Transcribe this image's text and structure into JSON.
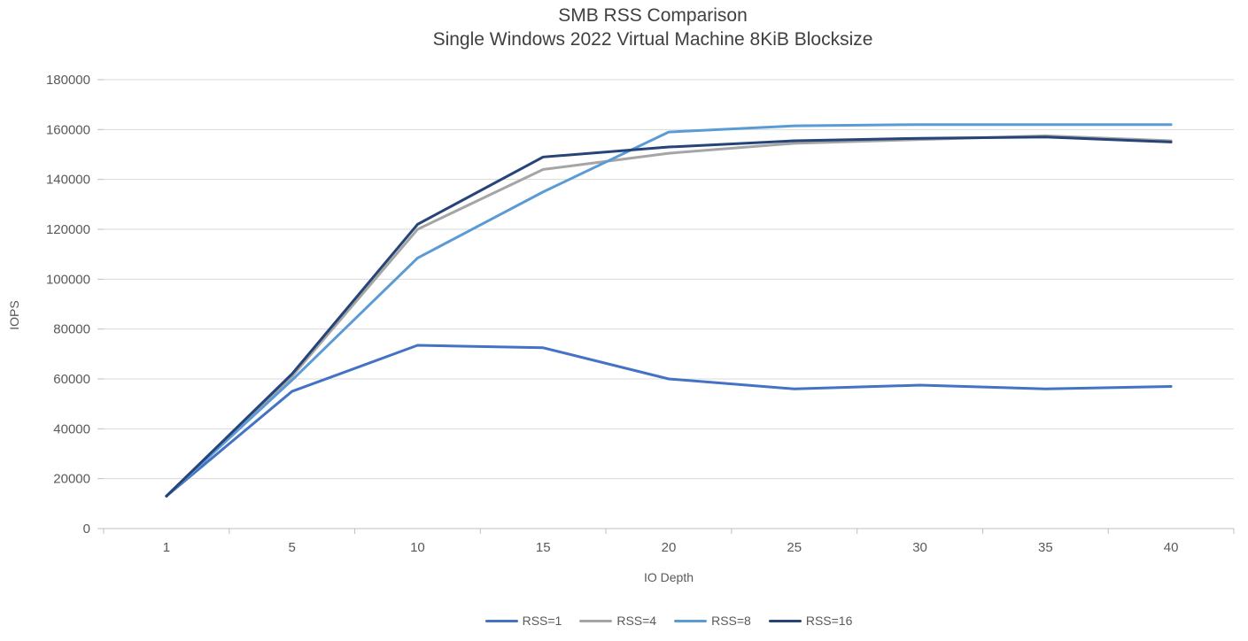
{
  "chart_data": {
    "type": "line",
    "title": "SMB RSS Comparison",
    "subtitle": "Single Windows 2022 Virtual Machine 8KiB Blocksize",
    "xlabel": "IO Depth",
    "ylabel": "IOPS",
    "categories": [
      1,
      5,
      10,
      15,
      20,
      25,
      30,
      35,
      40
    ],
    "ylim": [
      0,
      180000
    ],
    "ytick_step": 20000,
    "ytick_labels": [
      "0",
      "20000",
      "40000",
      "60000",
      "80000",
      "100000",
      "120000",
      "140000",
      "160000",
      "180000"
    ],
    "grid": "horizontal",
    "legend_position": "bottom",
    "series": [
      {
        "name": "RSS=1",
        "color": "#4472C4",
        "values": [
          13000,
          55000,
          73500,
          72500,
          60000,
          56000,
          57500,
          56000,
          57000
        ]
      },
      {
        "name": "RSS=4",
        "color": "#A5A5A5",
        "values": [
          13000,
          61000,
          120000,
          144000,
          150500,
          154500,
          156000,
          157500,
          155500
        ]
      },
      {
        "name": "RSS=8",
        "color": "#5B9BD5",
        "values": [
          13000,
          59500,
          108500,
          135000,
          159000,
          161500,
          162000,
          162000,
          162000
        ]
      },
      {
        "name": "RSS=16",
        "color": "#264478",
        "values": [
          13000,
          62000,
          122000,
          149000,
          153000,
          155500,
          156500,
          157000,
          155000
        ]
      }
    ]
  },
  "colors": {
    "gridline": "#D9D9D9",
    "axis_line": "#BFBFBF",
    "tick_label": "#595959",
    "title_text": "#404040"
  }
}
